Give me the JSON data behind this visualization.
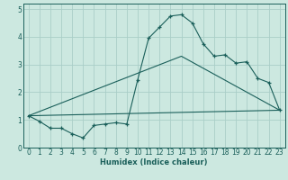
{
  "bg_color": "#cce8e0",
  "grid_color": "#aacec8",
  "line_color": "#1a5f5a",
  "x_label": "Humidex (Indice chaleur)",
  "xlim": [
    -0.5,
    23.5
  ],
  "ylim": [
    0,
    5.2
  ],
  "xticks": [
    0,
    1,
    2,
    3,
    4,
    5,
    6,
    7,
    8,
    9,
    10,
    11,
    12,
    13,
    14,
    15,
    16,
    17,
    18,
    19,
    20,
    21,
    22,
    23
  ],
  "yticks": [
    0,
    1,
    2,
    3,
    4,
    5
  ],
  "series1_x": [
    0,
    1,
    2,
    3,
    4,
    5,
    6,
    7,
    8,
    9,
    10,
    11,
    12,
    13,
    14,
    15,
    16,
    17,
    18,
    19,
    20,
    21,
    22,
    23
  ],
  "series1_y": [
    1.15,
    0.95,
    0.7,
    0.7,
    0.5,
    0.35,
    0.8,
    0.85,
    0.9,
    0.85,
    2.45,
    3.95,
    4.35,
    4.75,
    4.8,
    4.5,
    3.75,
    3.3,
    3.35,
    3.05,
    3.1,
    2.5,
    2.35,
    1.35
  ],
  "series2_x": [
    0,
    14,
    23
  ],
  "series2_y": [
    1.15,
    3.3,
    1.35
  ],
  "series3_x": [
    0,
    23
  ],
  "series3_y": [
    1.15,
    1.35
  ],
  "tick_fontsize": 5.5,
  "xlabel_fontsize": 6.0
}
